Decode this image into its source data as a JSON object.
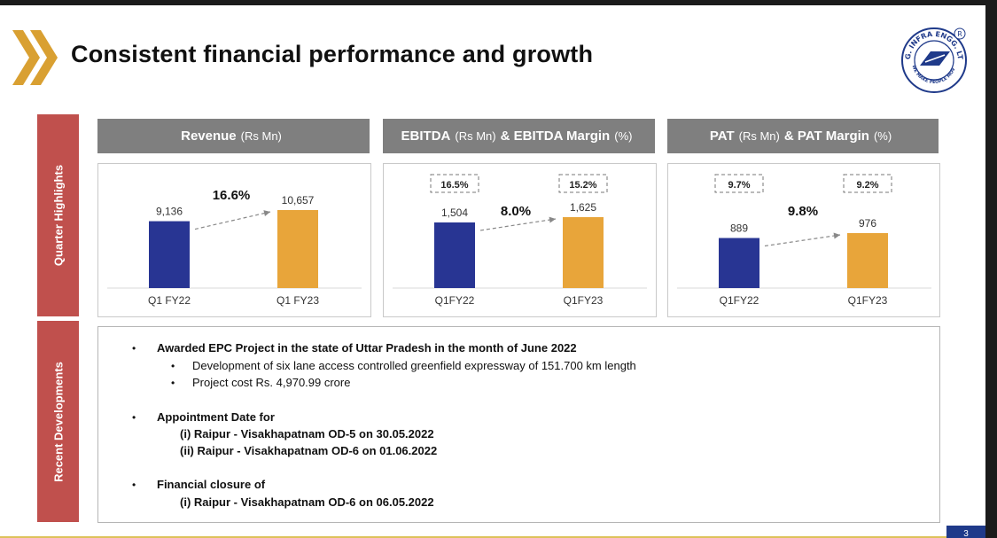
{
  "slide": {
    "title": "Consistent financial performance and growth",
    "page_number": "3"
  },
  "logo": {
    "top_text": "H.G. INFRA ENGG. LTD.",
    "bottom_text": "WE MAKE PEOPLE MOVE",
    "registered_mark": "R"
  },
  "side_labels": {
    "quarter": "Quarter Highlights",
    "recent": "Recent Developments"
  },
  "panels": [
    {
      "title": "Revenue",
      "unit": "(Rs Mn)"
    },
    {
      "title": "EBITDA",
      "unit": "(Rs Mn)",
      "title2": "& EBITDA Margin",
      "unit2": "(%)"
    },
    {
      "title": "PAT",
      "unit": "(Rs Mn)",
      "title2": "& PAT Margin",
      "unit2": "(%)"
    }
  ],
  "chart_data": [
    {
      "type": "bar",
      "title": "Revenue (Rs Mn)",
      "categories": [
        "Q1 FY22",
        "Q1 FY23"
      ],
      "values": [
        9136,
        10657
      ],
      "labels": [
        "9,136",
        "10,657"
      ],
      "growth": "16.6%",
      "colors": [
        "#283593",
        "#e8a53a"
      ]
    },
    {
      "type": "bar",
      "title": "EBITDA (Rs Mn) & EBITDA Margin (%)",
      "categories": [
        "Q1FY22",
        "Q1FY23"
      ],
      "values": [
        1504,
        1625
      ],
      "labels": [
        "1,504",
        "1,625"
      ],
      "margins": [
        "16.5%",
        "15.2%"
      ],
      "growth": "8.0%",
      "colors": [
        "#283593",
        "#e8a53a"
      ]
    },
    {
      "type": "bar",
      "title": "PAT (Rs Mn) & PAT Margin (%)",
      "categories": [
        "Q1FY22",
        "Q1FY23"
      ],
      "values": [
        889,
        976
      ],
      "labels": [
        "889",
        "976"
      ],
      "margins": [
        "9.7%",
        "9.2%"
      ],
      "growth": "9.8%",
      "colors": [
        "#283593",
        "#e8a53a"
      ]
    }
  ],
  "developments": {
    "item1": "Awarded EPC Project in the state of Uttar Pradesh in the month of June 2022",
    "item1_sub1": "Development of six lane access controlled greenfield expressway of 151.700 km length",
    "item1_sub2": "Project cost Rs. 4,970.99 crore",
    "item2": "Appointment Date for",
    "item2_line1": "(i) Raipur - Visakhapatnam OD-5 on 30.05.2022",
    "item2_line2": "(ii) Raipur - Visakhapatnam OD-6 on 01.06.2022",
    "item3": "Financial closure of",
    "item3_line1": "(i) Raipur - Visakhapatnam OD-6 on 06.05.2022",
    "bullet": "•"
  },
  "colors": {
    "accent_red": "#c0504d",
    "header_gray": "#7f7f7f",
    "bar_blue": "#283593",
    "bar_orange": "#e8a53a",
    "chevron_gold": "#d9a032",
    "brand_blue": "#1f3a8a"
  }
}
